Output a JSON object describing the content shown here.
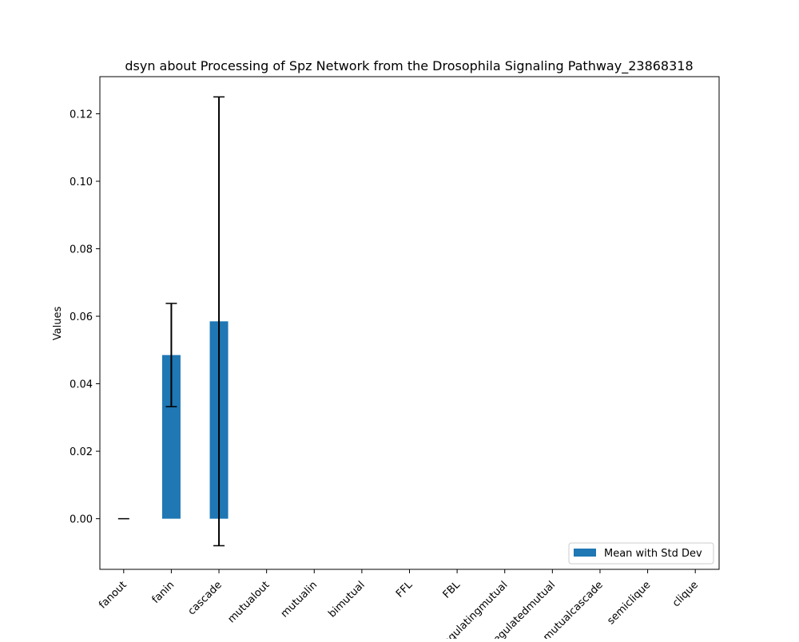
{
  "chart_data": {
    "type": "bar",
    "title": "dsyn about Processing of Spz Network from the Drosophila Signaling Pathway_23868318",
    "xlabel": "",
    "ylabel": "Values",
    "categories": [
      "fanout",
      "fanin",
      "cascade",
      "mutualout",
      "mutualin",
      "bimutual",
      "FFL",
      "FBL",
      "regulatingmutual",
      "regulatedmutual",
      "mutualcascade",
      "semiclique",
      "clique"
    ],
    "series": [
      {
        "name": "Mean with Std Dev",
        "values": [
          0.0,
          0.0485,
          0.0585,
          null,
          null,
          null,
          null,
          null,
          null,
          null,
          null,
          null,
          null
        ],
        "errors": [
          0.0,
          0.0153,
          0.0665,
          null,
          null,
          null,
          null,
          null,
          null,
          null,
          null,
          null,
          null
        ]
      }
    ],
    "ylim": [
      -0.015,
      0.131
    ],
    "yticks": [
      0.0,
      0.02,
      0.04,
      0.06,
      0.08,
      0.1,
      0.12
    ],
    "ytick_labels": [
      "0.00",
      "0.02",
      "0.04",
      "0.06",
      "0.08",
      "0.10",
      "0.12"
    ],
    "grid": false,
    "legend_position": "lower right",
    "colors": {
      "bar": "#1f77b4",
      "error": "#000000",
      "axes": "#000000"
    }
  }
}
